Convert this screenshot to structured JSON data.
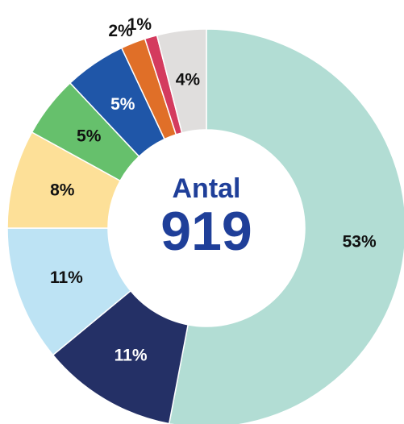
{
  "chart_data": {
    "type": "donut",
    "center_label": "Antal",
    "center_value": "919",
    "values": [
      53,
      11,
      11,
      8,
      5,
      5,
      2,
      1,
      4
    ],
    "value_labels": [
      "53%",
      "11%",
      "11%",
      "8%",
      "5%",
      "5%",
      "2%",
      "1%",
      "4%"
    ],
    "colors": [
      "#b2ddd4",
      "#243066",
      "#bde3f4",
      "#fde098",
      "#66c06c",
      "#1f56a8",
      "#e06f28",
      "#d43b5e",
      "#e0dedd"
    ]
  }
}
